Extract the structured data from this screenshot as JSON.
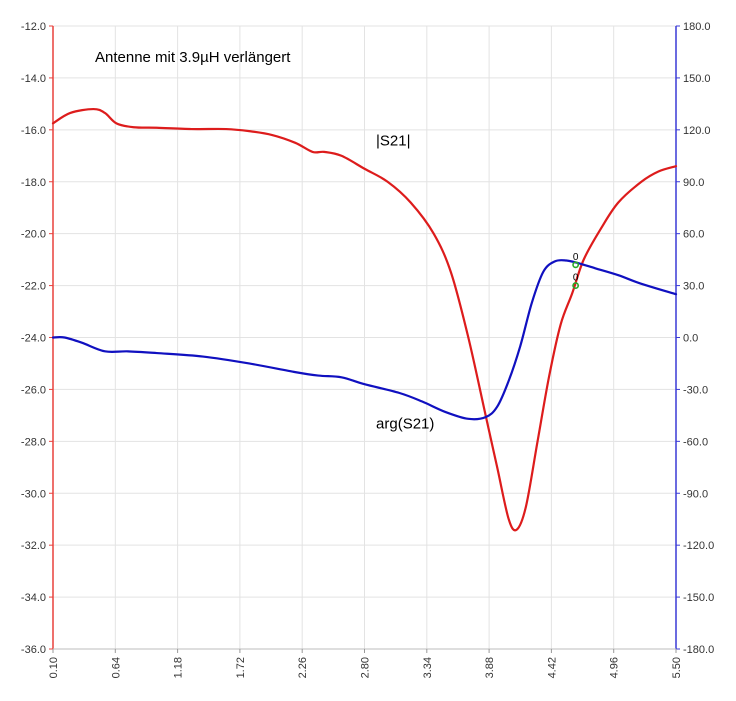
{
  "chart_data": {
    "type": "line",
    "title": "Antenne mit 3.9µH verlängert",
    "grid": true,
    "x": {
      "range": [
        0.1,
        5.5
      ],
      "ticks": [
        0.1,
        0.64,
        1.18,
        1.72,
        2.26,
        2.8,
        3.34,
        3.88,
        4.42,
        4.96,
        5.5
      ],
      "tick_labels": [
        "0.10",
        "0.64",
        "1.18",
        "1.72",
        "2.26",
        "2.80",
        "3.34",
        "3.88",
        "4.42",
        "4.96",
        "5.50"
      ]
    },
    "y_left": {
      "range": [
        -36.0,
        -12.0
      ],
      "ticks": [
        -12,
        -14,
        -16,
        -18,
        -20,
        -22,
        -24,
        -26,
        -28,
        -30,
        -32,
        -34,
        -36
      ],
      "tick_labels": [
        "-12.0",
        "-14.0",
        "-16.0",
        "-18.0",
        "-20.0",
        "-22.0",
        "-24.0",
        "-26.0",
        "-28.0",
        "-30.0",
        "-32.0",
        "-34.0",
        "-36.0"
      ],
      "color": "#e8413c"
    },
    "y_right": {
      "range": [
        -180.0,
        180.0
      ],
      "ticks": [
        180,
        150,
        120,
        90,
        60,
        30,
        0,
        -30,
        -60,
        -90,
        -120,
        -150,
        -180
      ],
      "tick_labels": [
        "180.0",
        "150.0",
        "120.0",
        "90.0",
        "60.0",
        "30.0",
        "0.0",
        "-30.0",
        "-60.0",
        "-90.0",
        "-120.0",
        "-150.0",
        "-180.0"
      ],
      "color": "#3a3ad6"
    },
    "series": [
      {
        "name": "|S21|",
        "axis": "left",
        "color": "#dd1c1c",
        "points": [
          [
            0.1,
            -15.75
          ],
          [
            0.25,
            -15.35
          ],
          [
            0.45,
            -15.2
          ],
          [
            0.55,
            -15.35
          ],
          [
            0.65,
            -15.75
          ],
          [
            0.8,
            -15.9
          ],
          [
            1.0,
            -15.92
          ],
          [
            1.3,
            -15.97
          ],
          [
            1.6,
            -15.97
          ],
          [
            1.8,
            -16.05
          ],
          [
            2.0,
            -16.2
          ],
          [
            2.2,
            -16.5
          ],
          [
            2.35,
            -16.85
          ],
          [
            2.45,
            -16.85
          ],
          [
            2.6,
            -17.0
          ],
          [
            2.8,
            -17.5
          ],
          [
            3.0,
            -18.0
          ],
          [
            3.2,
            -18.8
          ],
          [
            3.4,
            -20.0
          ],
          [
            3.55,
            -21.5
          ],
          [
            3.7,
            -24.0
          ],
          [
            3.85,
            -27.0
          ],
          [
            3.95,
            -29.0
          ],
          [
            4.05,
            -31.0
          ],
          [
            4.12,
            -31.4
          ],
          [
            4.2,
            -30.5
          ],
          [
            4.3,
            -28.0
          ],
          [
            4.4,
            -25.5
          ],
          [
            4.5,
            -23.5
          ],
          [
            4.6,
            -22.3
          ],
          [
            4.7,
            -21.0
          ],
          [
            4.85,
            -19.8
          ],
          [
            5.0,
            -18.8
          ],
          [
            5.2,
            -18.0
          ],
          [
            5.35,
            -17.6
          ],
          [
            5.5,
            -17.4
          ]
        ]
      },
      {
        "name": "arg(S21)",
        "axis": "right",
        "color": "#1010c0",
        "points": [
          [
            0.1,
            0.0
          ],
          [
            0.2,
            0.0
          ],
          [
            0.35,
            -3.0
          ],
          [
            0.55,
            -8.0
          ],
          [
            0.75,
            -8.0
          ],
          [
            1.0,
            -9.0
          ],
          [
            1.4,
            -11.0
          ],
          [
            1.8,
            -15.0
          ],
          [
            2.2,
            -20.0
          ],
          [
            2.4,
            -22.0
          ],
          [
            2.6,
            -23.0
          ],
          [
            2.8,
            -27.0
          ],
          [
            3.1,
            -32.0
          ],
          [
            3.3,
            -37.0
          ],
          [
            3.5,
            -43.0
          ],
          [
            3.7,
            -47.0
          ],
          [
            3.85,
            -46.0
          ],
          [
            3.95,
            -40.0
          ],
          [
            4.05,
            -25.0
          ],
          [
            4.15,
            -5.0
          ],
          [
            4.25,
            20.0
          ],
          [
            4.35,
            38.0
          ],
          [
            4.45,
            44.0
          ],
          [
            4.55,
            44.5
          ],
          [
            4.65,
            43.0
          ],
          [
            4.8,
            40.0
          ],
          [
            5.0,
            36.0
          ],
          [
            5.2,
            31.0
          ],
          [
            5.5,
            25.0
          ]
        ]
      }
    ],
    "annotations": [
      {
        "text": "|S21|",
        "x": 2.9,
        "y": -16.6,
        "axis": "left"
      },
      {
        "text": "arg(S21)",
        "x": 2.9,
        "y": -27.5,
        "axis": "left"
      }
    ],
    "markers": [
      {
        "label": "0",
        "x": 4.63,
        "y": 42.0,
        "axis": "right"
      },
      {
        "label": "0",
        "x": 4.63,
        "y": -22.0,
        "axis": "left"
      }
    ]
  }
}
